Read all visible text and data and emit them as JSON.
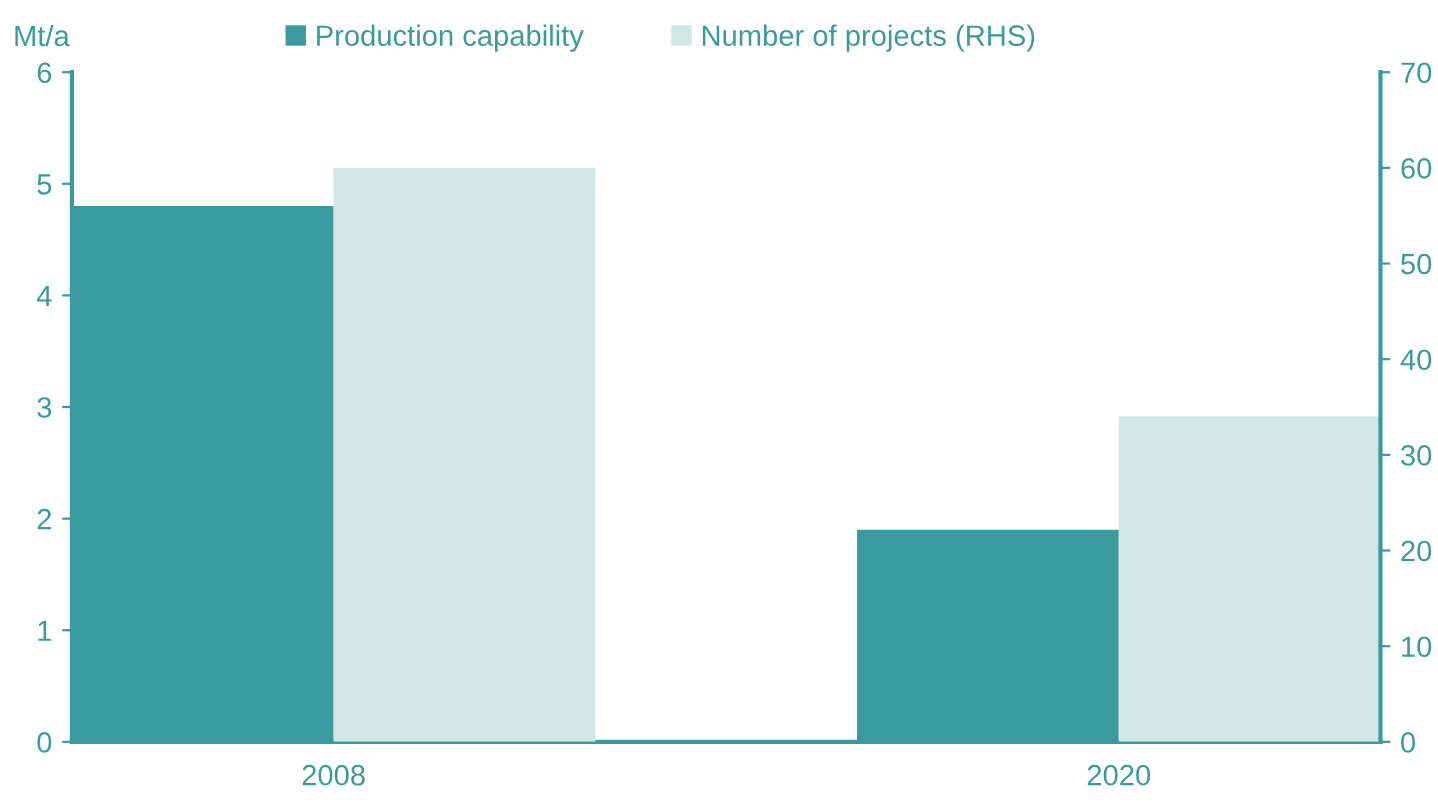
{
  "chart_data": {
    "type": "bar",
    "ylabel": "Mt/a",
    "categories": [
      "2008",
      "2020"
    ],
    "series": [
      {
        "name": "Production capability",
        "color": "#3a9a9e",
        "values": [
          4.8,
          1.9
        ]
      },
      {
        "name": "Number of projects (RHS)",
        "color": "#d0e7e8",
        "values": [
          60,
          34
        ],
        "axis": "y2"
      }
    ],
    "ylim": [
      0,
      6
    ],
    "yticks": [
      0,
      1,
      2,
      3,
      4,
      5,
      6
    ],
    "y2lim": [
      0,
      70
    ],
    "y2ticks": [
      0,
      10,
      20,
      30,
      40,
      50,
      60,
      70
    ],
    "grid": false,
    "legend": "top"
  }
}
